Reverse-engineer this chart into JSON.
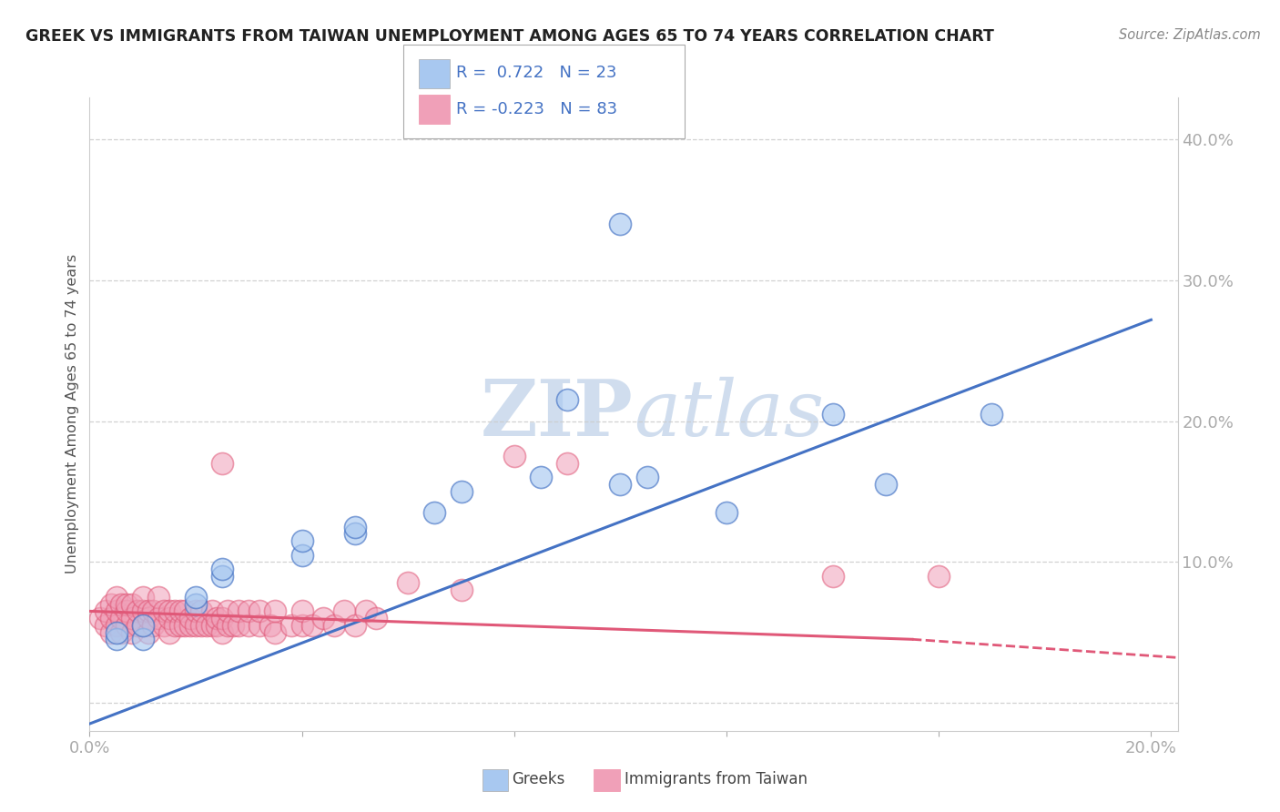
{
  "title": "GREEK VS IMMIGRANTS FROM TAIWAN UNEMPLOYMENT AMONG AGES 65 TO 74 YEARS CORRELATION CHART",
  "source": "Source: ZipAtlas.com",
  "xlim": [
    0.0,
    0.205
  ],
  "ylim": [
    -0.02,
    0.43
  ],
  "ylabel": "Unemployment Among Ages 65 to 74 years",
  "legend_greek": "Greeks",
  "legend_taiwan": "Immigrants from Taiwan",
  "R_greek": 0.722,
  "N_greek": 23,
  "R_taiwan": -0.223,
  "N_taiwan": 83,
  "greek_color": "#a8c8f0",
  "taiwan_color": "#f0a0b8",
  "trend_blue": "#4472c4",
  "trend_pink": "#e05878",
  "background_color": "#ffffff",
  "title_color": "#222222",
  "axis_label_color": "#4472c4",
  "watermark_color": "#c8d8ec",
  "greek_points": [
    [
      0.005,
      0.045
    ],
    [
      0.005,
      0.05
    ],
    [
      0.01,
      0.045
    ],
    [
      0.01,
      0.055
    ],
    [
      0.02,
      0.07
    ],
    [
      0.02,
      0.075
    ],
    [
      0.025,
      0.09
    ],
    [
      0.025,
      0.095
    ],
    [
      0.04,
      0.105
    ],
    [
      0.04,
      0.115
    ],
    [
      0.05,
      0.12
    ],
    [
      0.05,
      0.125
    ],
    [
      0.065,
      0.135
    ],
    [
      0.07,
      0.15
    ],
    [
      0.085,
      0.16
    ],
    [
      0.09,
      0.215
    ],
    [
      0.1,
      0.155
    ],
    [
      0.105,
      0.16
    ],
    [
      0.12,
      0.135
    ],
    [
      0.14,
      0.205
    ],
    [
      0.15,
      0.155
    ],
    [
      0.17,
      0.205
    ],
    [
      0.1,
      0.34
    ]
  ],
  "taiwan_points": [
    [
      0.002,
      0.06
    ],
    [
      0.003,
      0.055
    ],
    [
      0.003,
      0.065
    ],
    [
      0.004,
      0.05
    ],
    [
      0.004,
      0.06
    ],
    [
      0.004,
      0.07
    ],
    [
      0.005,
      0.055
    ],
    [
      0.005,
      0.065
    ],
    [
      0.005,
      0.075
    ],
    [
      0.006,
      0.05
    ],
    [
      0.006,
      0.06
    ],
    [
      0.006,
      0.07
    ],
    [
      0.007,
      0.055
    ],
    [
      0.007,
      0.065
    ],
    [
      0.007,
      0.07
    ],
    [
      0.008,
      0.05
    ],
    [
      0.008,
      0.06
    ],
    [
      0.008,
      0.07
    ],
    [
      0.009,
      0.055
    ],
    [
      0.009,
      0.065
    ],
    [
      0.01,
      0.055
    ],
    [
      0.01,
      0.065
    ],
    [
      0.01,
      0.075
    ],
    [
      0.011,
      0.05
    ],
    [
      0.011,
      0.06
    ],
    [
      0.011,
      0.065
    ],
    [
      0.012,
      0.055
    ],
    [
      0.012,
      0.065
    ],
    [
      0.013,
      0.06
    ],
    [
      0.013,
      0.075
    ],
    [
      0.014,
      0.055
    ],
    [
      0.014,
      0.065
    ],
    [
      0.015,
      0.05
    ],
    [
      0.015,
      0.06
    ],
    [
      0.015,
      0.065
    ],
    [
      0.016,
      0.055
    ],
    [
      0.016,
      0.065
    ],
    [
      0.017,
      0.055
    ],
    [
      0.017,
      0.065
    ],
    [
      0.018,
      0.055
    ],
    [
      0.018,
      0.065
    ],
    [
      0.019,
      0.055
    ],
    [
      0.019,
      0.06
    ],
    [
      0.02,
      0.055
    ],
    [
      0.02,
      0.065
    ],
    [
      0.021,
      0.055
    ],
    [
      0.021,
      0.065
    ],
    [
      0.022,
      0.055
    ],
    [
      0.023,
      0.055
    ],
    [
      0.023,
      0.065
    ],
    [
      0.024,
      0.055
    ],
    [
      0.024,
      0.06
    ],
    [
      0.025,
      0.05
    ],
    [
      0.025,
      0.06
    ],
    [
      0.026,
      0.055
    ],
    [
      0.026,
      0.065
    ],
    [
      0.027,
      0.055
    ],
    [
      0.028,
      0.055
    ],
    [
      0.028,
      0.065
    ],
    [
      0.03,
      0.055
    ],
    [
      0.03,
      0.065
    ],
    [
      0.032,
      0.055
    ],
    [
      0.032,
      0.065
    ],
    [
      0.034,
      0.055
    ],
    [
      0.035,
      0.05
    ],
    [
      0.035,
      0.065
    ],
    [
      0.038,
      0.055
    ],
    [
      0.04,
      0.055
    ],
    [
      0.04,
      0.065
    ],
    [
      0.042,
      0.055
    ],
    [
      0.044,
      0.06
    ],
    [
      0.046,
      0.055
    ],
    [
      0.048,
      0.065
    ],
    [
      0.05,
      0.055
    ],
    [
      0.052,
      0.065
    ],
    [
      0.054,
      0.06
    ],
    [
      0.06,
      0.085
    ],
    [
      0.07,
      0.08
    ],
    [
      0.08,
      0.175
    ],
    [
      0.09,
      0.17
    ],
    [
      0.025,
      0.17
    ],
    [
      0.14,
      0.09
    ],
    [
      0.16,
      0.09
    ]
  ]
}
